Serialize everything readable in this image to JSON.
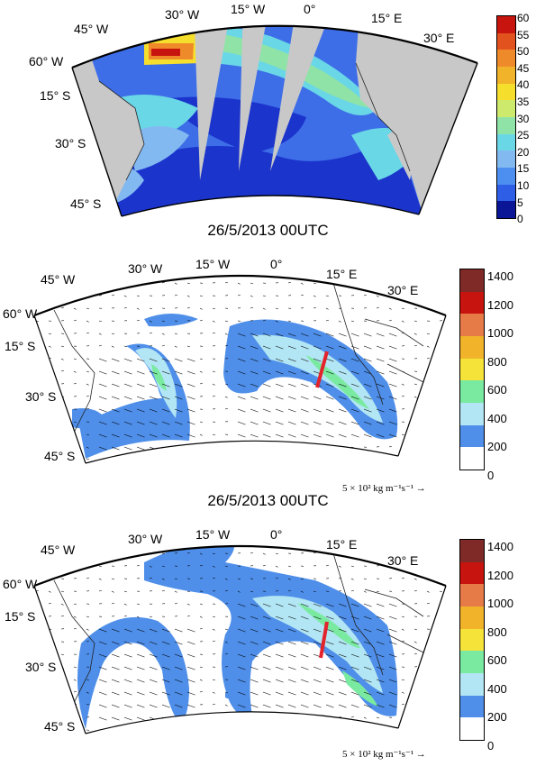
{
  "panels": [
    {
      "id": "panel-top",
      "lon_labels": [
        "45° W",
        "30° W",
        "15° W",
        "0°",
        "15° E",
        "30° E"
      ],
      "lat_labels": [
        "60° W",
        "15° S",
        "30° S",
        "45° S"
      ],
      "colorbar_ticks": [
        "60",
        "55",
        "50",
        "45",
        "40",
        "35",
        "30",
        "25",
        "20",
        "15",
        "10",
        "5",
        "0"
      ],
      "colorbar_colors": [
        "#c8140e",
        "#e2521e",
        "#ef8a2a",
        "#f1b32a",
        "#f6df2c",
        "#cdea6c",
        "#8fe3a7",
        "#6ad7e6",
        "#83b9f1",
        "#4c8ff0",
        "#2e5ee6",
        "#1d39cf",
        "#0b1696"
      ],
      "caption": "26/5/2013 00UTC"
    },
    {
      "id": "panel-middle",
      "lon_labels": [
        "45° W",
        "30° W",
        "15° W",
        "0°",
        "15° E",
        "30° E"
      ],
      "lat_labels": [
        "60° W",
        "15° S",
        "30° S",
        "45° S"
      ],
      "colorbar_ticks": [
        "1400",
        "1200",
        "1000",
        "800",
        "600",
        "400",
        "200",
        "0"
      ],
      "colorbar_colors": [
        "#7f2a26",
        "#c8140e",
        "#e77b47",
        "#f1b32a",
        "#f5e33a",
        "#79eaa0",
        "#b3e6f4",
        "#4f8fe9",
        "#ffffff"
      ],
      "scale_note": "5 × 10² kg m⁻¹s⁻¹ →",
      "caption": "26/5/2013 00UTC"
    },
    {
      "id": "panel-bottom",
      "lon_labels": [
        "45° W",
        "30° W",
        "15° W",
        "0°",
        "15° E",
        "30° E"
      ],
      "lat_labels": [
        "60° W",
        "15° S",
        "30° S",
        "45° S"
      ],
      "colorbar_ticks": [
        "1400",
        "1200",
        "1000",
        "800",
        "600",
        "400",
        "200",
        "0"
      ],
      "colorbar_colors": [
        "#7f2a26",
        "#c8140e",
        "#e77b47",
        "#f1b32a",
        "#f5e33a",
        "#79eaa0",
        "#b3e6f4",
        "#4f8fe9",
        "#ffffff"
      ],
      "scale_note": "5 × 10² kg m⁻¹s⁻¹ →"
    }
  ],
  "colors": {
    "land_gray": "#c8c8c8",
    "ocean_blue": "#3d6ee8",
    "deep_blue": "#1b34cc",
    "ivt_blue": "#4f8fe9",
    "ivt_light": "#b3e6f4",
    "ivt_green": "#79eaa0",
    "section_red": "#e3232b"
  }
}
